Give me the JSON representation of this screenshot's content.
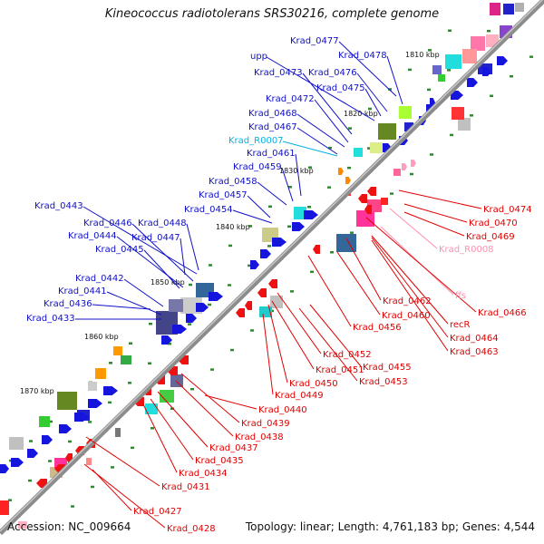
{
  "header": {
    "title": "Kineococcus radiotolerans SRS30216, complete genome"
  },
  "footer": {
    "accession": "Accession: NC_009664",
    "summary": "Topology: linear; Length: 4,761,183 bp; Genes: 4,544"
  },
  "colors": {
    "forward_label": "#1010c8",
    "reverse_label": "#e00000",
    "rna_forward": "#00b4e6",
    "rna_reverse": "#ff8fb0",
    "tick": "#2e8b2e",
    "axis": "#8c8c8c"
  },
  "ruler": [
    {
      "label": "1810 kbp"
    },
    {
      "label": "1820 kbp"
    },
    {
      "label": "1830 kbp"
    },
    {
      "label": "1840 kbp"
    },
    {
      "label": "1850 kbp"
    },
    {
      "label": "1860 kbp"
    },
    {
      "label": "1870 kbp"
    }
  ],
  "forward_genes": [
    {
      "label": "Krad_0477"
    },
    {
      "label": "Krad_0478"
    },
    {
      "label": "upp"
    },
    {
      "label": "Krad_0473"
    },
    {
      "label": "Krad_0476"
    },
    {
      "label": "Krad_0475"
    },
    {
      "label": "Krad_0472"
    },
    {
      "label": "Krad_0468"
    },
    {
      "label": "Krad_0467"
    },
    {
      "label": "Krad_R0007",
      "type": "rna"
    },
    {
      "label": "Krad_0461"
    },
    {
      "label": "Krad_0459"
    },
    {
      "label": "Krad_0458"
    },
    {
      "label": "Krad_0457"
    },
    {
      "label": "Krad_0454"
    },
    {
      "label": "Krad_0443"
    },
    {
      "label": "Krad_0446"
    },
    {
      "label": "Krad_0448"
    },
    {
      "label": "Krad_0444"
    },
    {
      "label": "Krad_0447"
    },
    {
      "label": "Krad_0445"
    },
    {
      "label": "Krad_0442"
    },
    {
      "label": "Krad_0441"
    },
    {
      "label": "Krad_0436"
    },
    {
      "label": "Krad_0433"
    }
  ],
  "reverse_genes": [
    {
      "label": "Krad_0474"
    },
    {
      "label": "Krad_0470"
    },
    {
      "label": "Krad_0469"
    },
    {
      "label": "Krad_R0008",
      "type": "rna"
    },
    {
      "label": "ffs",
      "type": "rna"
    },
    {
      "label": "Krad_0466"
    },
    {
      "label": "Krad_0462"
    },
    {
      "label": "Krad_0460"
    },
    {
      "label": "recR"
    },
    {
      "label": "Krad_0464"
    },
    {
      "label": "Krad_0456"
    },
    {
      "label": "Krad_0463"
    },
    {
      "label": "Krad_0452"
    },
    {
      "label": "Krad_0455"
    },
    {
      "label": "Krad_0451"
    },
    {
      "label": "Krad_0450"
    },
    {
      "label": "Krad_0453"
    },
    {
      "label": "Krad_0449"
    },
    {
      "label": "Krad_0440"
    },
    {
      "label": "Krad_0439"
    },
    {
      "label": "Krad_0438"
    },
    {
      "label": "Krad_0437"
    },
    {
      "label": "Krad_0435"
    },
    {
      "label": "Krad_0434"
    },
    {
      "label": "Krad_0431"
    },
    {
      "label": "Krad_0427"
    },
    {
      "label": "Krad_0428"
    }
  ]
}
